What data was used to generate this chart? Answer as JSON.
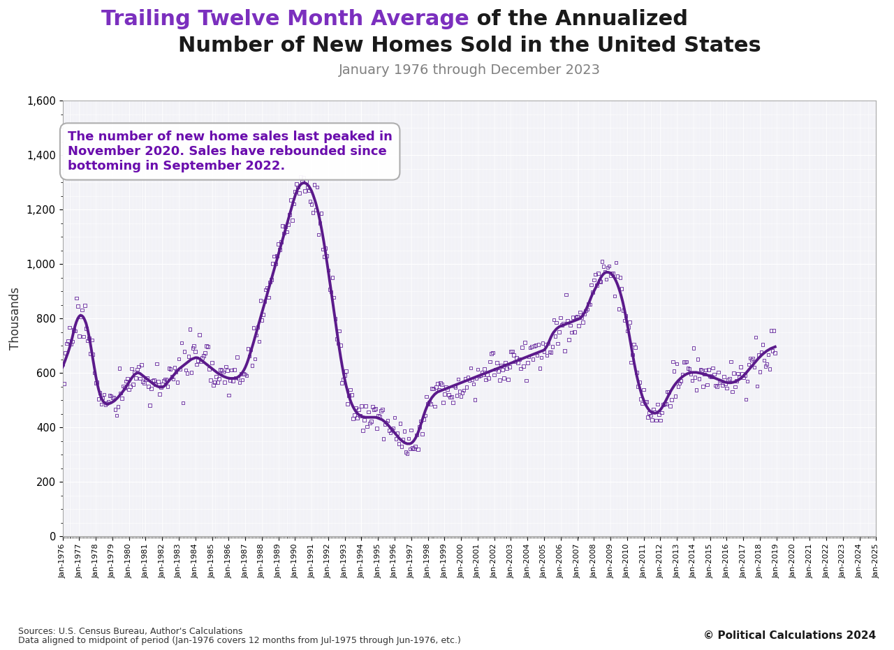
{
  "title_line1_purple": "Trailing Twelve Month Average",
  "title_line1_black": " of the Annualized",
  "title_line2": "Number of New Homes Sold in the United States",
  "subtitle": "January 1976 through December 2023",
  "ylabel": "Thousands",
  "ylim": [
    0,
    1600
  ],
  "yticks": [
    0,
    200,
    400,
    600,
    800,
    1000,
    1200,
    1400,
    1600
  ],
  "annotation": "The number of new home sales last peaked in\nNovember 2020. Sales have rebounded since\nbottoming in September 2022.",
  "source_line1": "Sources: U.S. Census Bureau, Author's Calculations",
  "source_line2": "Data aligned to midpoint of period (Jan-1976 covers 12 months from Jul-1975 through Jun-1976, etc.)",
  "copyright": "© Political Calculations 2024",
  "line_color": "#5B1A8B",
  "marker_color": "#6B2FA0",
  "bg_color": "#FFFFFF",
  "plot_bg_color": "#EEEEF4",
  "grid_color": "#FFFFFF",
  "title_purple_color": "#7B2FBE",
  "title_black_color": "#1A1A1A",
  "subtitle_color": "#808080",
  "annotation_color": "#6A0DAD",
  "smooth_values": [
    622,
    635,
    648,
    662,
    676,
    692,
    710,
    730,
    752,
    772,
    788,
    800,
    808,
    812,
    810,
    805,
    795,
    782,
    762,
    738,
    710,
    680,
    648,
    618,
    588,
    562,
    540,
    522,
    508,
    498,
    492,
    488,
    486,
    486,
    488,
    490,
    493,
    496,
    500,
    505,
    510,
    516,
    522,
    528,
    535,
    542,
    550,
    558,
    566,
    574,
    582,
    588,
    594,
    598,
    600,
    600,
    598,
    594,
    590,
    586,
    582,
    578,
    574,
    570,
    566,
    562,
    558,
    555,
    552,
    550,
    548,
    548,
    548,
    550,
    554,
    560,
    566,
    572,
    578,
    584,
    590,
    596,
    602,
    608,
    614,
    618,
    622,
    626,
    630,
    634,
    638,
    642,
    646,
    650,
    652,
    654,
    656,
    656,
    655,
    652,
    648,
    644,
    640,
    636,
    632,
    628,
    624,
    620,
    616,
    612,
    608,
    604,
    600,
    597,
    594,
    591,
    588,
    586,
    584,
    582,
    581,
    580,
    580,
    580,
    580,
    581,
    583,
    586,
    590,
    595,
    602,
    610,
    620,
    632,
    646,
    662,
    678,
    695,
    712,
    730,
    748,
    766,
    784,
    802,
    820,
    838,
    856,
    874,
    892,
    910,
    928,
    946,
    964,
    982,
    1000,
    1018,
    1036,
    1054,
    1072,
    1090,
    1108,
    1126,
    1144,
    1162,
    1180,
    1198,
    1216,
    1234,
    1250,
    1264,
    1276,
    1285,
    1292,
    1296,
    1298,
    1298,
    1296,
    1292,
    1286,
    1278,
    1268,
    1255,
    1240,
    1224,
    1205,
    1184,
    1160,
    1134,
    1106,
    1076,
    1044,
    1010,
    975,
    940,
    904,
    868,
    832,
    796,
    760,
    724,
    690,
    658,
    628,
    600,
    575,
    552,
    532,
    514,
    499,
    486,
    475,
    466,
    458,
    452,
    447,
    444,
    441,
    439,
    438,
    437,
    437,
    437,
    437,
    437,
    437,
    437,
    437,
    436,
    434,
    432,
    430,
    428,
    424,
    420,
    415,
    410,
    404,
    398,
    392,
    386,
    380,
    374,
    368,
    362,
    356,
    352,
    348,
    344,
    342,
    340,
    340,
    340,
    342,
    346,
    352,
    360,
    370,
    382,
    396,
    412,
    428,
    444,
    459,
    472,
    484,
    494,
    502,
    510,
    516,
    522,
    526,
    530,
    532,
    534,
    536,
    538,
    540,
    542,
    544,
    546,
    548,
    550,
    552,
    554,
    556,
    558,
    560,
    562,
    564,
    566,
    568,
    570,
    572,
    574,
    576,
    578,
    580,
    582,
    584,
    586,
    588,
    590,
    592,
    594,
    596,
    598,
    600,
    602,
    604,
    606,
    608,
    610,
    612,
    614,
    616,
    618,
    620,
    622,
    624,
    626,
    628,
    630,
    632,
    634,
    636,
    638,
    640,
    642,
    644,
    646,
    648,
    650,
    652,
    654,
    656,
    658,
    660,
    662,
    664,
    666,
    668,
    670,
    672,
    674,
    676,
    678,
    680,
    682,
    684,
    690,
    698,
    708,
    720,
    732,
    742,
    750,
    756,
    762,
    766,
    770,
    772,
    774,
    776,
    778,
    780,
    782,
    784,
    786,
    788,
    790,
    792,
    794,
    796,
    798,
    800,
    805,
    812,
    820,
    830,
    840,
    852,
    865,
    878,
    890,
    900,
    910,
    920,
    930,
    940,
    950,
    958,
    964,
    968,
    970,
    970,
    969,
    967,
    962,
    956,
    948,
    938,
    926,
    912,
    896,
    878,
    858,
    835,
    810,
    783,
    755,
    726,
    697,
    668,
    640,
    614,
    590,
    568,
    548,
    530,
    514,
    500,
    488,
    478,
    470,
    463,
    458,
    455,
    453,
    452,
    453,
    455,
    459,
    464,
    471,
    479,
    488,
    498,
    508,
    518,
    528,
    537,
    545,
    553,
    560,
    566,
    572,
    577,
    582,
    586,
    590,
    593,
    596,
    598,
    600,
    601,
    602,
    602,
    602,
    602,
    601,
    600,
    599,
    598,
    596,
    595,
    594,
    592,
    590,
    588,
    586,
    584,
    582,
    580,
    578,
    576,
    574,
    572,
    570,
    568,
    566,
    565,
    564,
    564,
    564,
    565,
    566,
    568,
    570,
    573,
    576,
    580,
    584,
    589,
    594,
    600,
    606,
    612,
    618,
    624,
    630,
    636,
    642,
    648,
    654,
    659,
    664,
    669,
    673,
    677,
    681,
    684,
    687,
    690,
    692,
    694,
    696
  ],
  "start_year": 1976,
  "start_month": 1
}
